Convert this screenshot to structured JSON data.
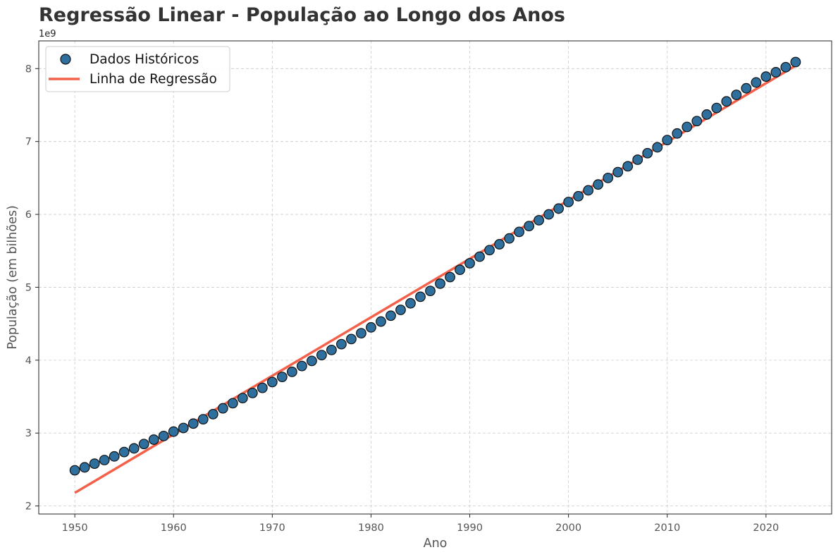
{
  "chart_data": {
    "type": "scatter",
    "title": "Regressão Linear - População ao Longo dos Anos",
    "xlabel": "Ano",
    "ylabel": "População (em bilhões)",
    "y_offset_label": "1e9",
    "xlim": [
      1946.35,
      2026.65
    ],
    "ylim": [
      1.89,
      8.38
    ],
    "xticks": [
      1950,
      1960,
      1970,
      1980,
      1990,
      2000,
      2010,
      2020
    ],
    "yticks": [
      2,
      3,
      4,
      5,
      6,
      7,
      8
    ],
    "grid": true,
    "legend_position": "upper-left",
    "series": [
      {
        "name": "Dados Históricos",
        "kind": "scatter",
        "color": "#2E6F9E",
        "edge_color": "#111111",
        "x": [
          1950,
          1951,
          1952,
          1953,
          1954,
          1955,
          1956,
          1957,
          1958,
          1959,
          1960,
          1961,
          1962,
          1963,
          1964,
          1965,
          1966,
          1967,
          1968,
          1969,
          1970,
          1971,
          1972,
          1973,
          1974,
          1975,
          1976,
          1977,
          1978,
          1979,
          1980,
          1981,
          1982,
          1983,
          1984,
          1985,
          1986,
          1987,
          1988,
          1989,
          1990,
          1991,
          1992,
          1993,
          1994,
          1995,
          1996,
          1997,
          1998,
          1999,
          2000,
          2001,
          2002,
          2003,
          2004,
          2005,
          2006,
          2007,
          2008,
          2009,
          2010,
          2011,
          2012,
          2013,
          2014,
          2015,
          2016,
          2017,
          2018,
          2019,
          2020,
          2021,
          2022,
          2023
        ],
        "y": [
          2.49,
          2.53,
          2.58,
          2.63,
          2.68,
          2.74,
          2.79,
          2.85,
          2.91,
          2.96,
          3.02,
          3.07,
          3.13,
          3.19,
          3.26,
          3.34,
          3.41,
          3.48,
          3.55,
          3.62,
          3.7,
          3.77,
          3.84,
          3.92,
          3.99,
          4.07,
          4.14,
          4.22,
          4.29,
          4.37,
          4.45,
          4.53,
          4.61,
          4.69,
          4.78,
          4.87,
          4.95,
          5.05,
          5.14,
          5.24,
          5.33,
          5.42,
          5.51,
          5.59,
          5.67,
          5.76,
          5.84,
          5.92,
          6.0,
          6.08,
          6.17,
          6.25,
          6.33,
          6.41,
          6.5,
          6.58,
          6.66,
          6.75,
          6.84,
          6.92,
          7.02,
          7.11,
          7.2,
          7.28,
          7.37,
          7.46,
          7.55,
          7.64,
          7.73,
          7.81,
          7.89,
          7.95,
          8.02,
          8.09
        ]
      },
      {
        "name": "Linha de Regressão",
        "kind": "line",
        "color": "#F4614B",
        "x": [
          1950,
          2023
        ],
        "y": [
          2.18,
          8.04
        ]
      }
    ]
  }
}
